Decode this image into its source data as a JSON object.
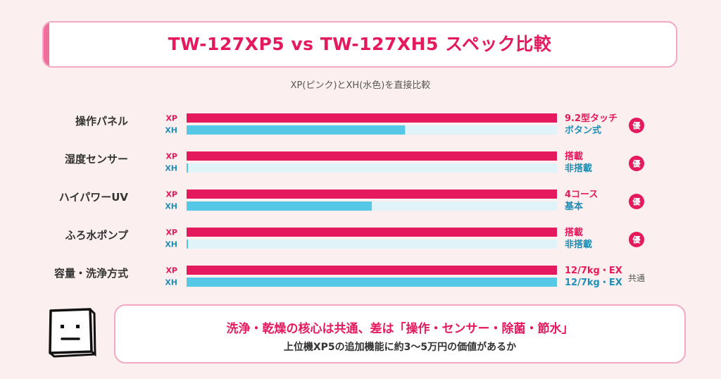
{
  "title": "TW-127XP5 vs TW-127XH5 スペック比較",
  "subtitle": "XP(ピンク)とXH(水色)を直接比較",
  "colors": {
    "xp": "#e5195e",
    "xh": "#55c8e6",
    "xh_track": "#dff3f8",
    "xh_text": "#1e8fb5",
    "accent": "#ee6f9c"
  },
  "chart_data": {
    "type": "bar",
    "orientation": "horizontal",
    "xlim": [
      0,
      100
    ],
    "categories": [
      "操作パネル",
      "湿度センサー",
      "ハイパワーUV",
      "ふろ水ポンプ",
      "容量・洗浄方式"
    ],
    "series": [
      {
        "name": "XP",
        "values": [
          100,
          100,
          100,
          100,
          100
        ],
        "labels": [
          "9.2型タッチ",
          "搭載",
          "4コース",
          "搭載",
          "12/7kg・EX"
        ]
      },
      {
        "name": "XH",
        "values": [
          59,
          0,
          50,
          0,
          100
        ],
        "labels": [
          "ボタン式",
          "非搭載",
          "基本",
          "非搭載",
          "12/7kg・EX"
        ]
      }
    ],
    "badges": [
      "優",
      "優",
      "優",
      "優",
      "共通"
    ]
  },
  "note": {
    "line1": "洗浄・乾燥の核心は共通、差は「操作・センサー・除菌・節水」",
    "line2": "上位機XP5の追加機能に約3〜5万円の価値があるか"
  }
}
